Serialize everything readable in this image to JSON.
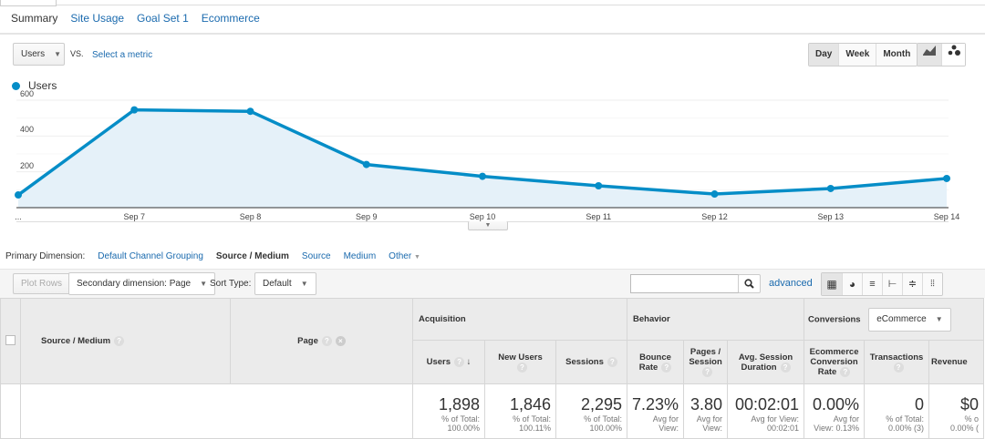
{
  "tabs": [
    "Summary",
    "Site Usage",
    "Goal Set 1",
    "Ecommerce"
  ],
  "metric_selector": {
    "value": "Users",
    "vs": "VS.",
    "select_metric": "Select a metric"
  },
  "granularity": [
    "Day",
    "Week",
    "Month"
  ],
  "chart_type_icons": [
    "line-chart-icon",
    "motion-chart-icon"
  ],
  "legend": "Users",
  "chart_data": {
    "type": "area",
    "series": [
      {
        "name": "Users",
        "values": [
          71,
          546,
          538,
          241,
          175,
          122,
          76,
          107,
          163
        ]
      }
    ],
    "x": [
      "...",
      "Sep 7",
      "Sep 8",
      "Sep 9",
      "Sep 10",
      "Sep 11",
      "Sep 12",
      "Sep 13",
      "Sep 14"
    ],
    "yticks": [
      200,
      400,
      600
    ],
    "ylim": [
      0,
      600
    ],
    "grid": true,
    "color": "#058dc7"
  },
  "primary_dimension": {
    "label": "Primary Dimension:",
    "options": [
      "Default Channel Grouping",
      "Source / Medium",
      "Source",
      "Medium",
      "Other"
    ]
  },
  "toolbar": {
    "plot_rows": "Plot Rows",
    "secondary": "Secondary dimension: Page",
    "sort_label": "Sort Type:",
    "sort_value": "Default",
    "search_placeholder": "",
    "advanced": "advanced"
  },
  "table": {
    "groups": {
      "acq": "Acquisition",
      "beh": "Behavior",
      "conv": "Conversions",
      "conv_select": "eCommerce"
    },
    "dims": [
      "Source / Medium",
      "Page"
    ],
    "columns": [
      "Users",
      "New Users",
      "Sessions",
      "Bounce Rate",
      "Pages / Session",
      "Avg. Session Duration",
      "Ecommerce Conversion Rate",
      "Transactions",
      "Revenue"
    ],
    "totals": [
      {
        "v": "1,898",
        "s1": "% of Total:",
        "s2": "100.00%"
      },
      {
        "v": "1,846",
        "s1": "% of Total:",
        "s2": "100.11%"
      },
      {
        "v": "2,295",
        "s1": "% of Total:",
        "s2": "100.00%"
      },
      {
        "v": "7.23%",
        "s1": "Avg for",
        "s2": "View:"
      },
      {
        "v": "3.80",
        "s1": "Avg for",
        "s2": "View:"
      },
      {
        "v": "00:02:01",
        "s1": "Avg for View:",
        "s2": "00:02:01"
      },
      {
        "v": "0.00%",
        "s1": "Avg for",
        "s2": "View: 0.13%"
      },
      {
        "v": "0",
        "s1": "% of Total:",
        "s2": "0.00% (3)"
      },
      {
        "v": "$0",
        "s1": "% o",
        "s2": "0.00% ("
      }
    ]
  }
}
